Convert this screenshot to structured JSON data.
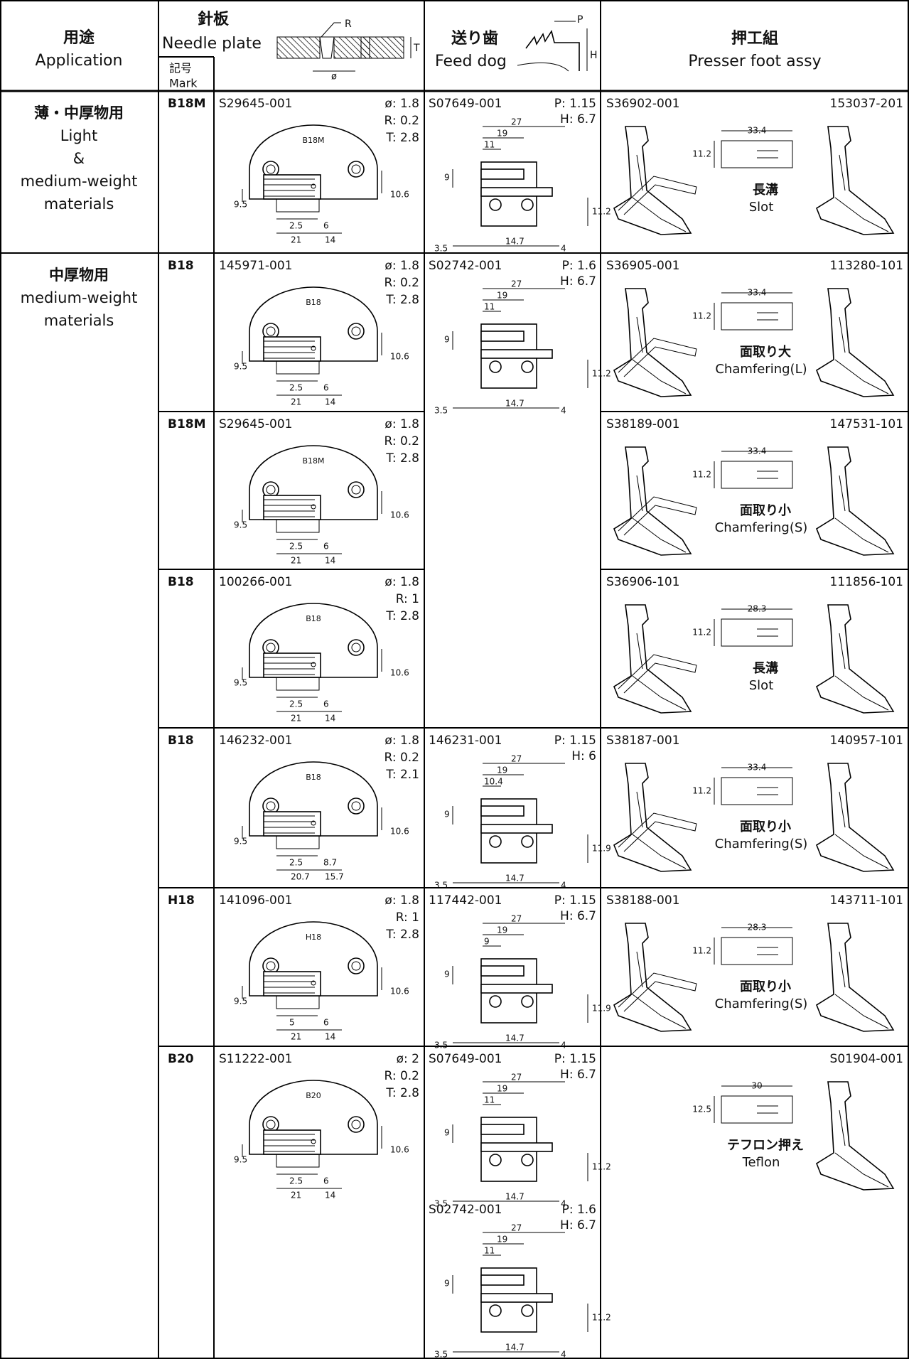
{
  "header": {
    "application_ja": "用途",
    "application_en": "Application",
    "needle_plate_ja": "針板",
    "needle_plate_en": "Needle plate",
    "mark_ja": "記号",
    "mark_en": "Mark",
    "feed_dog_ja": "送り歯",
    "feed_dog_en": "Feed dog",
    "presser_ja": "押工組",
    "presser_en": "Presser foot assy",
    "diagram": {
      "r": "R",
      "t": "T",
      "phi": "ø",
      "p": "P",
      "h": "H"
    }
  },
  "groups": [
    {
      "application": [
        "薄・中厚物用",
        "Light",
        "&",
        "medium-weight",
        "materials"
      ],
      "rows": [
        {
          "mark": "B18M",
          "plate": {
            "part": "S29645-001",
            "specs": [
              "ø: 1.8",
              "R: 0.2",
              "T: 2.8"
            ],
            "label": "B18M",
            "dims": [
              "9.5",
              "10.6",
              "2.5",
              "6",
              "21",
              "14"
            ]
          },
          "feed_dog": [
            {
              "part": "S07649-001",
              "specs": [
                "P: 1.15",
                "H: 6.7"
              ],
              "dims": [
                "27",
                "19",
                "11",
                "9",
                "11.2",
                "3.5",
                "14.7",
                "4"
              ]
            }
          ],
          "presser": {
            "left": "S36902-001",
            "right": "153037-201",
            "dim_w": "33.4",
            "dim_h": "11.2",
            "note_ja": "長溝",
            "note_en": "Slot"
          }
        }
      ]
    },
    {
      "application": [
        "中厚物用",
        "medium-weight",
        "materials"
      ],
      "rows": [
        {
          "mark": "B18",
          "plate": {
            "part": "145971-001",
            "specs": [
              "ø: 1.8",
              "R: 0.2",
              "T: 2.8"
            ],
            "label": "B18",
            "dims": [
              "9.5",
              "10.6",
              "2.5",
              "6",
              "21",
              "14"
            ]
          },
          "feed_dog": [
            {
              "part": "S02742-001",
              "specs": [
                "P: 1.6",
                "H: 6.7"
              ],
              "dims": [
                "27",
                "19",
                "11",
                "9",
                "11.2",
                "3.5",
                "14.7",
                "4"
              ]
            }
          ],
          "presser": {
            "left": "S36905-001",
            "right": "113280-101",
            "dim_w": "33.4",
            "dim_h": "11.2",
            "note_ja": "面取り大",
            "note_en": "Chamfering(L)"
          }
        },
        {
          "mark": "B18M",
          "plate": {
            "part": "S29645-001",
            "specs": [
              "ø: 1.8",
              "R: 0.2",
              "T: 2.8"
            ],
            "label": "B18M",
            "dims": [
              "9.5",
              "10.6",
              "2.5",
              "6",
              "21",
              "14"
            ]
          },
          "presser": {
            "left": "S38189-001",
            "right": "147531-101",
            "dim_w": "33.4",
            "dim_h": "11.2",
            "note_ja": "面取り小",
            "note_en": "Chamfering(S)"
          }
        },
        {
          "mark": "B18",
          "plate": {
            "part": "100266-001",
            "specs": [
              "ø: 1.8",
              "R: 1",
              "T: 2.8"
            ],
            "label": "B18",
            "dims": [
              "9.5",
              "10.6",
              "2.5",
              "6",
              "21",
              "14"
            ]
          },
          "presser": {
            "left": "S36906-101",
            "right": "111856-101",
            "dim_w": "28.3",
            "dim_h": "11.2",
            "note_ja": "長溝",
            "note_en": "Slot"
          }
        },
        {
          "mark": "B18",
          "plate": {
            "part": "146232-001",
            "specs": [
              "ø: 1.8",
              "R: 0.2",
              "T: 2.1"
            ],
            "label": "B18",
            "dims": [
              "9.5",
              "10.6",
              "2.5",
              "8.7",
              "20.7",
              "15.7"
            ]
          },
          "feed_dog": [
            {
              "part": "146231-001",
              "specs": [
                "P: 1.15",
                "H: 6"
              ],
              "dims": [
                "27",
                "19",
                "10.4",
                "9",
                "11.9",
                "3.5",
                "14.7",
                "4"
              ]
            }
          ],
          "presser": {
            "left": "S38187-001",
            "right": "140957-101",
            "dim_w": "33.4",
            "dim_h": "11.2",
            "note_ja": "面取り小",
            "note_en": "Chamfering(S)"
          }
        },
        {
          "mark": "H18",
          "plate": {
            "part": "141096-001",
            "specs": [
              "ø: 1.8",
              "R: 1",
              "T: 2.8"
            ],
            "label": "H18",
            "dims": [
              "9.5",
              "10.6",
              "5",
              "6",
              "21",
              "14"
            ]
          },
          "feed_dog": [
            {
              "part": "117442-001",
              "specs": [
                "P: 1.15",
                "H: 6.7"
              ],
              "dims": [
                "27",
                "19",
                "9",
                "9",
                "11.9",
                "3.5",
                "14.7",
                "4"
              ]
            }
          ],
          "presser": {
            "left": "S38188-001",
            "right": "143711-101",
            "dim_w": "28.3",
            "dim_h": "11.2",
            "note_ja": "面取り小",
            "note_en": "Chamfering(S)"
          }
        },
        {
          "mark": "B20",
          "plate": {
            "part": "S11222-001",
            "specs": [
              "ø: 2",
              "R: 0.2",
              "T: 2.8"
            ],
            "label": "B20",
            "dims": [
              "9.5",
              "10.6",
              "2.5",
              "6",
              "21",
              "14"
            ]
          },
          "feed_dog": [
            {
              "part": "S07649-001",
              "specs": [
                "P: 1.15",
                "H: 6.7"
              ],
              "dims": [
                "27",
                "19",
                "11",
                "9",
                "11.2",
                "3.5",
                "14.7",
                "4"
              ]
            },
            {
              "part": "S02742-001",
              "specs": [
                "P: 1.6",
                "H: 6.7"
              ],
              "dims": [
                "27",
                "19",
                "11",
                "9",
                "11.2",
                "3.5",
                "14.7",
                "4"
              ]
            }
          ],
          "presser": {
            "right": "S01904-001",
            "dim_w": "30",
            "dim_h": "12.5",
            "note_ja": "テフロン押え",
            "note_en": "Teflon"
          }
        }
      ]
    }
  ]
}
